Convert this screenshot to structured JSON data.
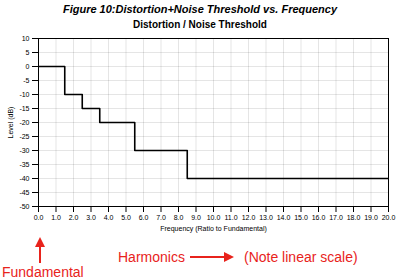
{
  "chart_data": {
    "type": "line",
    "title": "Figure 10:Distortion+Noise Threshold vs. Frequency",
    "subtitle": "Distortion / Noise Threshold",
    "xlabel": "Frequency (Ratio to Fundamental)",
    "ylabel": "Level (dB)",
    "x": [
      0,
      1.5,
      2.5,
      3.5,
      5.5,
      8.5,
      20
    ],
    "values": [
      0,
      -10,
      -15,
      -20,
      -30,
      -40,
      -40
    ],
    "color": "#000000",
    "line_style": "step",
    "xlim": [
      0,
      20
    ],
    "xticks": [
      {
        "value": 0,
        "label": "0.0"
      },
      {
        "value": 1,
        "label": "1.0"
      },
      {
        "value": 2,
        "label": "2.0"
      },
      {
        "value": 3,
        "label": "3.0"
      },
      {
        "value": 4,
        "label": "4.0"
      },
      {
        "value": 5,
        "label": "5.0"
      },
      {
        "value": 6,
        "label": "6.0"
      },
      {
        "value": 7,
        "label": "7.0"
      },
      {
        "value": 8,
        "label": "8.0"
      },
      {
        "value": 9,
        "label": "9.0"
      },
      {
        "value": 10,
        "label": "10.0"
      },
      {
        "value": 11,
        "label": "11.0"
      },
      {
        "value": 12,
        "label": "12.0"
      },
      {
        "value": 13,
        "label": "13.0"
      },
      {
        "value": 14,
        "label": "14.0"
      },
      {
        "value": 15,
        "label": "15.0"
      },
      {
        "value": 16,
        "label": "16.0"
      },
      {
        "value": 17,
        "label": "17.0"
      },
      {
        "value": 18,
        "label": "18.0"
      },
      {
        "value": 19,
        "label": "19.0"
      },
      {
        "value": 20,
        "label": "20.0"
      }
    ],
    "ylim": [
      -50,
      10
    ],
    "yticks": [
      -50,
      -45,
      -40,
      -35,
      -30,
      -25,
      -20,
      -15,
      -10,
      -5,
      0,
      5,
      10
    ],
    "grid": true,
    "annotations": [
      "Fundamental",
      "Harmonics",
      "(Note linear scale)"
    ]
  }
}
